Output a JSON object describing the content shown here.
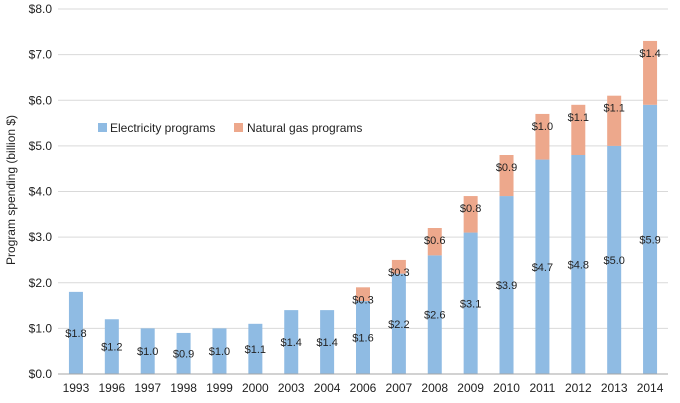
{
  "chart_data": {
    "type": "bar",
    "stacked": true,
    "title": "",
    "xlabel": "",
    "ylabel": "Program spending (billion $)",
    "ylim": [
      0,
      8
    ],
    "yticks": [
      "$0.0",
      "$1.0",
      "$2.0",
      "$3.0",
      "$4.0",
      "$5.0",
      "$6.0",
      "$7.0",
      "$8.0"
    ],
    "grid": true,
    "legend_position": "upper-left",
    "categories": [
      "1993",
      "1996",
      "1997",
      "1998",
      "1999",
      "2000",
      "2003",
      "2004",
      "2006",
      "2007",
      "2008",
      "2009",
      "2010",
      "2011",
      "2012",
      "2013",
      "2014"
    ],
    "series": [
      {
        "name": "Electricity programs",
        "color": "#8fbbe3",
        "values": [
          1.8,
          1.2,
          1.0,
          0.9,
          1.0,
          1.1,
          1.4,
          1.4,
          1.6,
          2.2,
          2.6,
          3.1,
          3.9,
          4.7,
          4.8,
          5.0,
          5.9
        ],
        "labels": [
          "$1.8",
          "$1.2",
          "$1.0",
          "$0.9",
          "$1.0",
          "$1.1",
          "$1.4",
          "$1.4",
          "$1.6",
          "$2.2",
          "$2.6",
          "$3.1",
          "$3.9",
          "$4.7",
          "$4.8",
          "$5.0",
          "$5.9"
        ]
      },
      {
        "name": "Natural gas programs",
        "color": "#eda88c",
        "values": [
          0,
          0,
          0,
          0,
          0,
          0,
          0,
          0,
          0.3,
          0.3,
          0.6,
          0.8,
          0.9,
          1.0,
          1.1,
          1.1,
          1.4
        ],
        "labels": [
          "",
          "",
          "",
          "",
          "",
          "",
          "",
          "",
          "$0.3",
          "$0.3",
          "$0.6",
          "$0.8",
          "$0.9",
          "$1.0",
          "$1.1",
          "$1.1",
          "$1.4"
        ]
      }
    ]
  }
}
